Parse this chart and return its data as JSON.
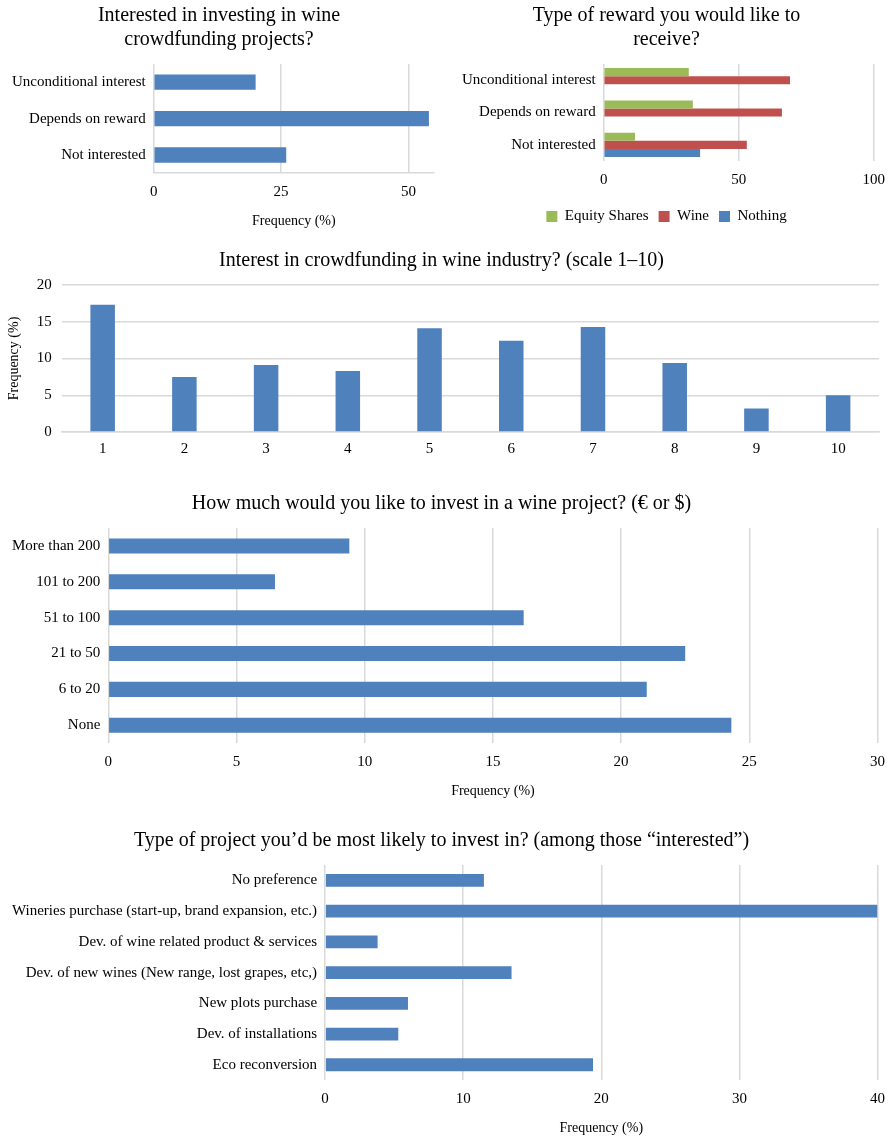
{
  "chart_data": [
    {
      "type": "bar",
      "orientation": "horizontal",
      "title": "Interested in investing in wine crowdfunding projects?",
      "xlabel": "Frequency (%)",
      "categories": [
        "Unconditional interest",
        "Depends on reward",
        "Not interested"
      ],
      "values": [
        20,
        54,
        26
      ],
      "color": "#4f81bd",
      "xlim": [
        0,
        55
      ],
      "xticks": [
        0,
        25,
        50
      ],
      "grid": "x"
    },
    {
      "type": "bar",
      "orientation": "horizontal",
      "title": "Type of reward you would like to receive?",
      "categories": [
        "Unconditional interest",
        "Depends on reward",
        "Not interested"
      ],
      "series": [
        {
          "name": "Equity Shares",
          "color": "#9bbb59",
          "values": [
            31.5,
            33,
            11.6
          ]
        },
        {
          "name": "Wine",
          "color": "#c0504d",
          "values": [
            69,
            66,
            53
          ]
        },
        {
          "name": "Nothing",
          "color": "#4f81bd",
          "values": [
            0,
            0,
            35.7
          ]
        }
      ],
      "xlim": [
        0,
        100
      ],
      "xticks": [
        0,
        50,
        100
      ],
      "grid": "x",
      "legend": "bottom"
    },
    {
      "type": "bar",
      "title": "Interest in crowdfunding in wine industry? (scale 1–10)",
      "ylabel": "Frequency (%)",
      "categories": [
        "1",
        "2",
        "3",
        "4",
        "5",
        "6",
        "7",
        "8",
        "9",
        "10"
      ],
      "values": [
        17.3,
        7.5,
        9.1,
        8.3,
        14.1,
        12.4,
        14.3,
        9.4,
        3.2,
        5.0
      ],
      "color": "#4f81bd",
      "ylim": [
        0,
        20
      ],
      "yticks": [
        0,
        5,
        10,
        15,
        20
      ],
      "grid": "y"
    },
    {
      "type": "bar",
      "orientation": "horizontal",
      "title": "How much would you like to invest in a wine project? (€ or $)",
      "xlabel": "Frequency (%)",
      "categories": [
        "More than 200",
        "101 to 200",
        "51 to 100",
        "21 to 50",
        "6 to 20",
        "None"
      ],
      "values": [
        9.4,
        6.5,
        16.2,
        22.5,
        21.0,
        24.3
      ],
      "color": "#4f81bd",
      "xlim": [
        0,
        30
      ],
      "xticks": [
        0,
        5,
        10,
        15,
        20,
        25,
        30
      ],
      "grid": "x"
    },
    {
      "type": "bar",
      "orientation": "horizontal",
      "title": "Type of project you’d be most likely to invest in? (among those “interested”)",
      "xlabel": "Frequency (%)",
      "categories": [
        "No preference",
        "Wineries purchase (start-up, brand expansion, etc.)",
        "Dev. of wine related product & services",
        "Dev. of new wines (New range, lost grapes, etc,)",
        "New plots purchase",
        "Dev. of installations",
        "Eco reconversion"
      ],
      "values": [
        11.5,
        40.0,
        3.8,
        13.5,
        6.0,
        5.3,
        19.4
      ],
      "color": "#4f81bd",
      "xlim": [
        0,
        40
      ],
      "xticks": [
        0,
        10,
        20,
        30,
        40
      ],
      "grid": "x"
    }
  ]
}
